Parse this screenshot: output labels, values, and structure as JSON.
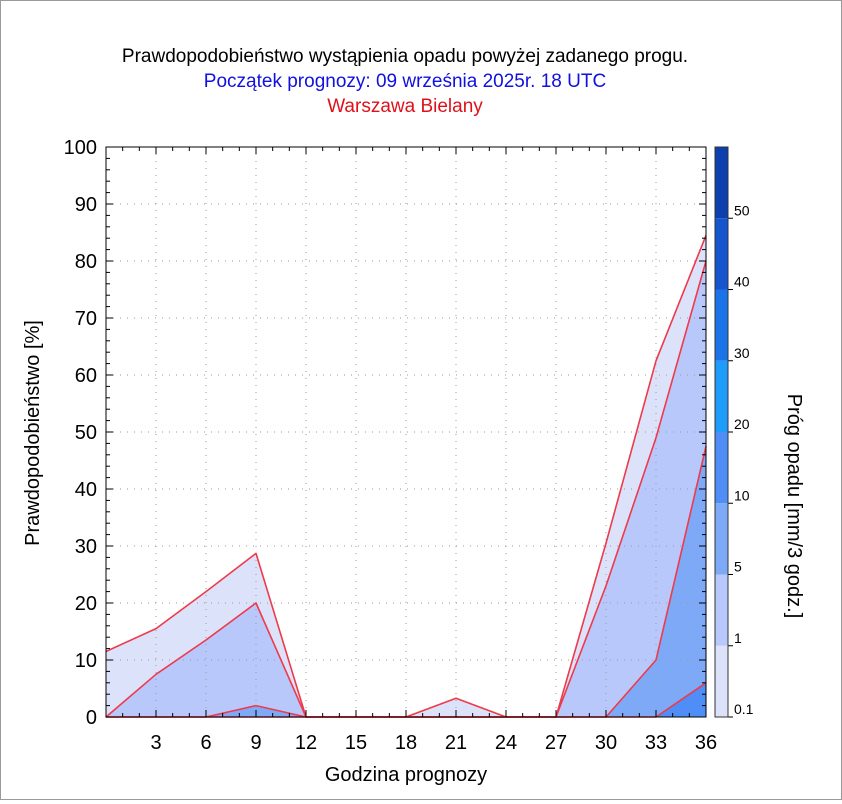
{
  "title": "Prawdopodobieństwo wystąpienia opadu powyżej zadanego progu.",
  "subtitle": "Początek prognozy: 09 września 2025r. 18 UTC",
  "location": "Warszawa Bielany",
  "colors": {
    "subtitle": "#1010e0",
    "location": "#e0101a",
    "outline": "#ee3a4a",
    "bands": [
      "#dde2fb",
      "#b9c8fa",
      "#7ea9f7",
      "#4e8ef6",
      "#1e9cf9",
      "#1a74e8",
      "#1556cf",
      "#0d3fae"
    ]
  },
  "chart_data": {
    "type": "area",
    "xlabel": "Godzina prognozy",
    "ylabel": "Prawdopodobieństwo [%]",
    "x": [
      0,
      3,
      6,
      9,
      12,
      15,
      18,
      21,
      24,
      27,
      30,
      33,
      36
    ],
    "xticks": [
      "3",
      "6",
      "9",
      "12",
      "15",
      "18",
      "21",
      "24",
      "27",
      "30",
      "33",
      "36"
    ],
    "xlim": [
      0,
      36
    ],
    "ylim": [
      0,
      100
    ],
    "yticks": [
      "0",
      "10",
      "20",
      "30",
      "40",
      "50",
      "60",
      "70",
      "80",
      "90",
      "100"
    ],
    "grid": true,
    "series": [
      {
        "name": "0.1",
        "values": [
          11.5,
          15.5,
          22,
          28.7,
          0,
          0,
          0,
          3.3,
          0,
          0,
          30.5,
          62.5,
          84.5
        ]
      },
      {
        "name": "1",
        "values": [
          0,
          7.5,
          13.5,
          20,
          0,
          0,
          0,
          0,
          0,
          0,
          23,
          49,
          80
        ]
      },
      {
        "name": "5",
        "values": [
          0,
          0,
          0,
          2,
          0,
          0,
          0,
          0,
          0,
          0,
          0,
          10,
          47.5
        ]
      },
      {
        "name": "10",
        "values": [
          0,
          0,
          0,
          0,
          0,
          0,
          0,
          0,
          0,
          0,
          0,
          0,
          6
        ]
      }
    ],
    "colorbar": {
      "label": "Próg opadu [mm/3 godz.]",
      "levels": [
        "0.1",
        "1",
        "5",
        "10",
        "20",
        "30",
        "40",
        "50"
      ]
    }
  }
}
